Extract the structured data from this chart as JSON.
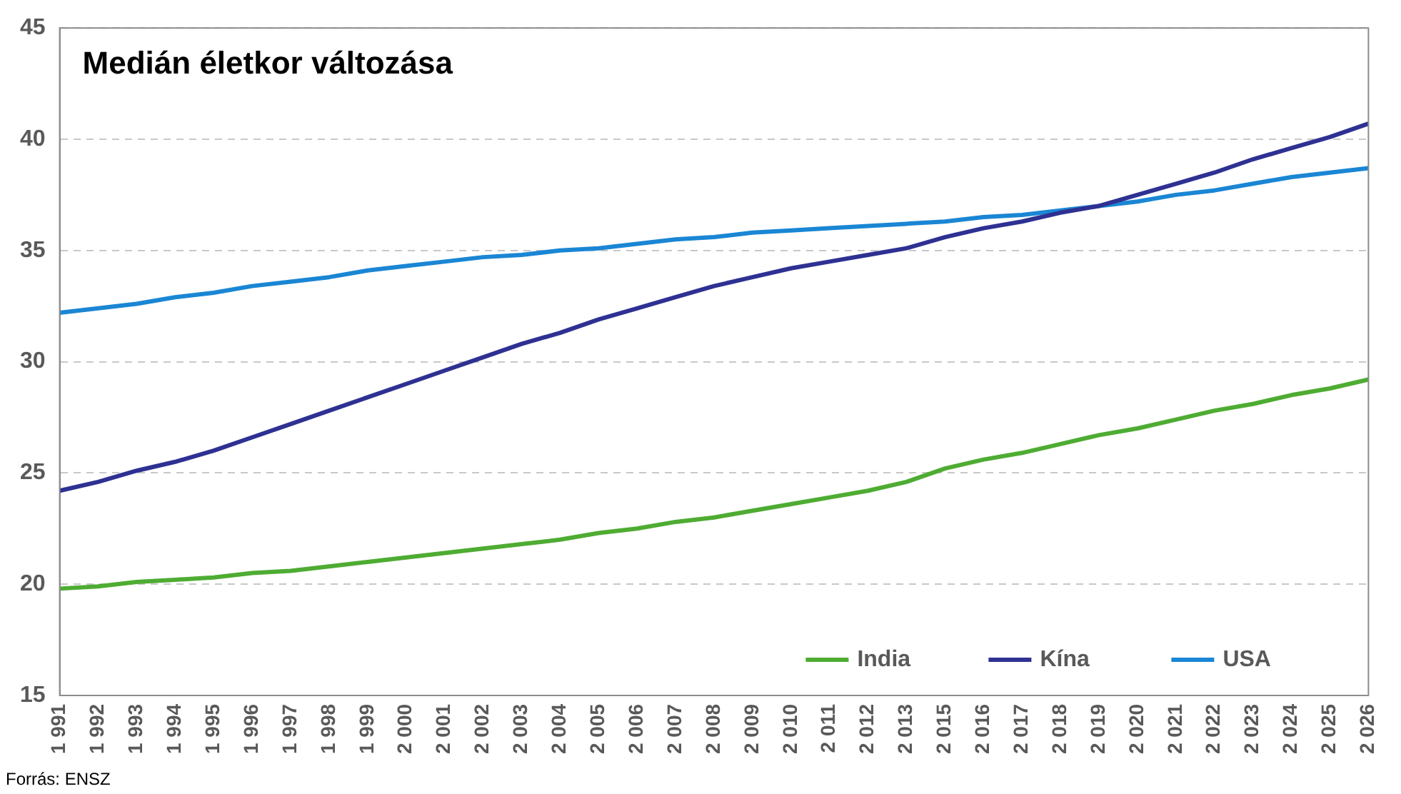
{
  "chart_data": {
    "type": "line",
    "title": "Medián életkor változása",
    "annotations": [
      "Forrás: ENSZ"
    ],
    "categories": [
      "1 991",
      "1 992",
      "1 993",
      "1 994",
      "1 995",
      "1 996",
      "1 997",
      "1 998",
      "1 999",
      "2 000",
      "2 001",
      "2 002",
      "2 003",
      "2 004",
      "2 005",
      "2 006",
      "2 007",
      "2 008",
      "2 009",
      "2 010",
      "2 011",
      "2 012",
      "2 013",
      "2 015",
      "2 016",
      "2 017",
      "2 018",
      "2 019",
      "2 020",
      "2 021",
      "2 022",
      "2 023",
      "2 024",
      "2 025",
      "2 026"
    ],
    "series": [
      {
        "name": "India",
        "color": "#4eac32",
        "values": [
          19.8,
          19.9,
          20.1,
          20.2,
          20.3,
          20.5,
          20.6,
          20.8,
          21.0,
          21.2,
          21.4,
          21.6,
          21.8,
          22.0,
          22.3,
          22.5,
          22.8,
          23.0,
          23.3,
          23.6,
          23.9,
          24.2,
          24.6,
          25.2,
          25.6,
          25.9,
          26.3,
          26.7,
          27.0,
          27.4,
          27.8,
          28.1,
          28.5,
          28.8,
          29.2
        ]
      },
      {
        "name": "Kína",
        "color": "#2e3192",
        "values": [
          24.2,
          24.6,
          25.1,
          25.5,
          26.0,
          26.6,
          27.2,
          27.8,
          28.4,
          29.0,
          29.6,
          30.2,
          30.8,
          31.3,
          31.9,
          32.4,
          32.9,
          33.4,
          33.8,
          34.2,
          34.5,
          34.8,
          35.1,
          35.6,
          36.0,
          36.3,
          36.7,
          37.0,
          37.5,
          38.0,
          38.5,
          39.1,
          39.6,
          40.1,
          40.7
        ]
      },
      {
        "name": "USA",
        "color": "#1a86d4",
        "values": [
          32.2,
          32.4,
          32.6,
          32.9,
          33.1,
          33.4,
          33.6,
          33.8,
          34.1,
          34.3,
          34.5,
          34.7,
          34.8,
          35.0,
          35.1,
          35.3,
          35.5,
          35.6,
          35.8,
          35.9,
          36.0,
          36.1,
          36.2,
          36.3,
          36.5,
          36.6,
          36.8,
          37.0,
          37.2,
          37.5,
          37.7,
          38.0,
          38.3,
          38.5,
          38.7
        ]
      }
    ],
    "ylim": [
      15,
      45
    ],
    "yticks": [
      15,
      20,
      25,
      30,
      35,
      40,
      45
    ],
    "grid": "y",
    "legend": "bottom right",
    "marker": "none",
    "line_style": "solid"
  }
}
